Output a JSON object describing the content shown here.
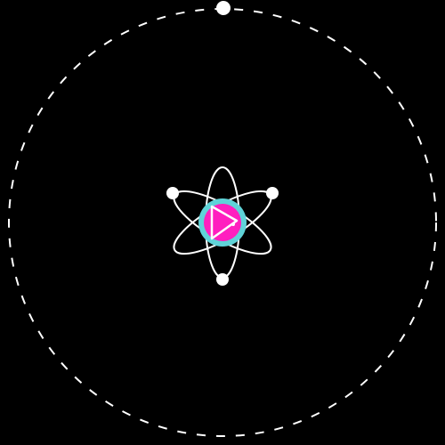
{
  "colors": {
    "background": "#000000",
    "outer_ring": "#ffffff",
    "orbit_stroke": "#ffffff",
    "electron": "#ffffff",
    "nucleus_halo": "#5fd3d8",
    "nucleus_core": "#ff1fbf",
    "play_triangle": "#ffffff"
  },
  "icons": {
    "nucleus": "atom-nucleus",
    "play": "play-triangle-icon",
    "outer_electron": "orbiting-dot",
    "inner_electrons": "electron-dot"
  }
}
